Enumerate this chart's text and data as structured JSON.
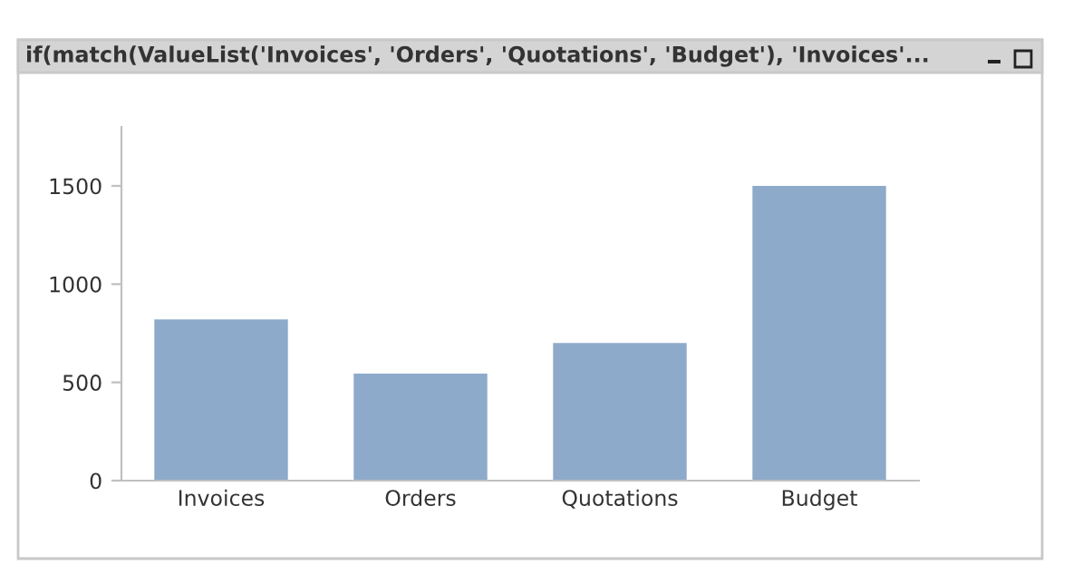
{
  "chart_data": {
    "type": "bar",
    "title": "if(match(ValueList('Invoices', 'Orders', 'Quotations', 'Budget'), 'Invoices'...",
    "categories": [
      "Invoices",
      "Orders",
      "Quotations",
      "Budget"
    ],
    "values": [
      820,
      545,
      700,
      1500
    ],
    "color": "#8eaaca",
    "ylim": [
      0,
      1800
    ],
    "yticks": [
      0,
      500,
      1000,
      1500
    ]
  }
}
